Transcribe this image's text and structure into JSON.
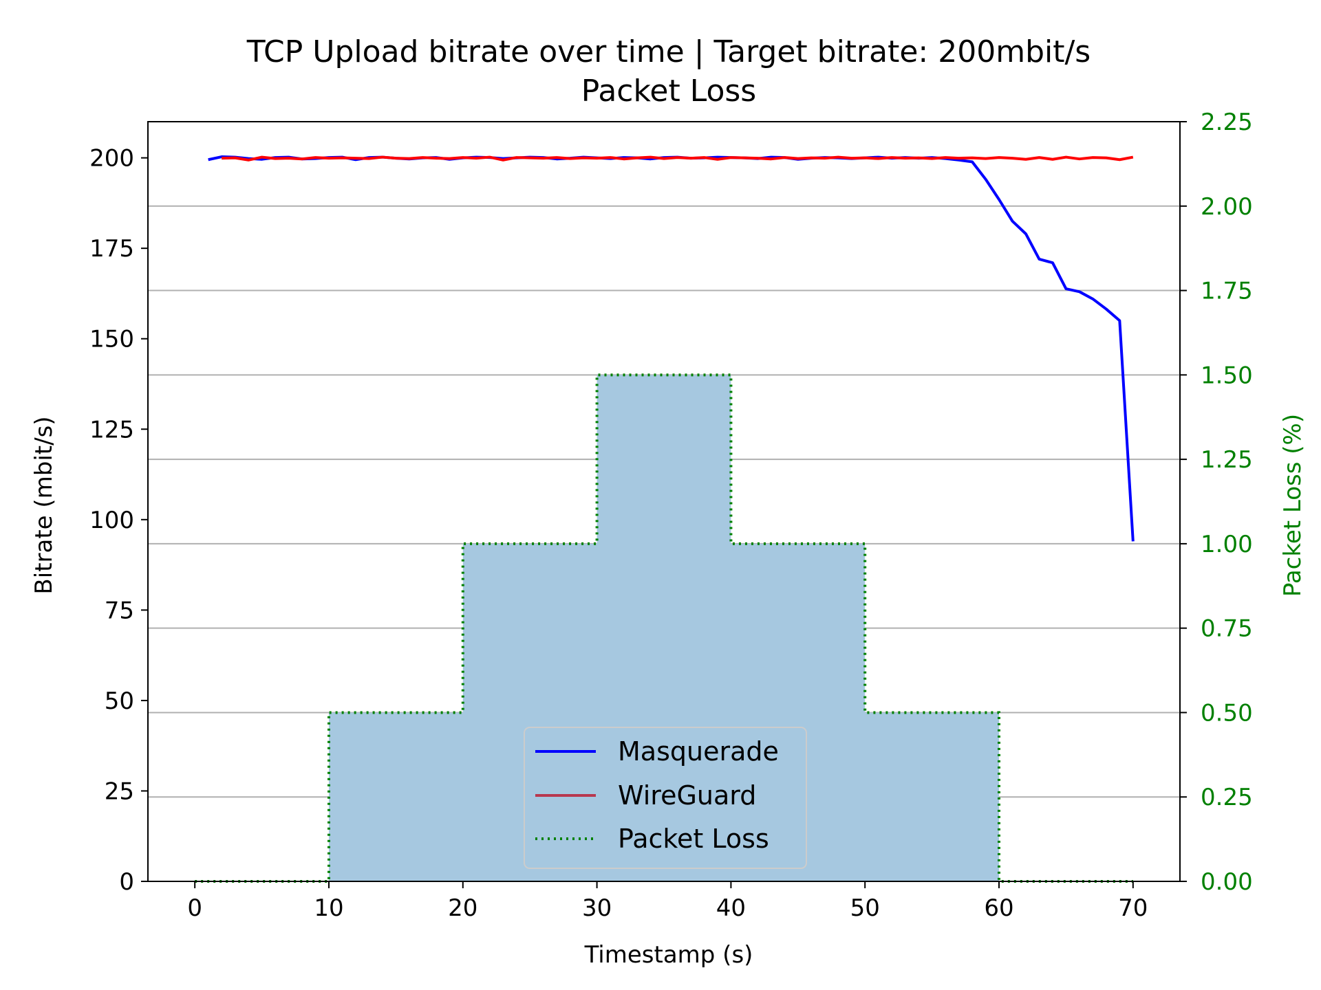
{
  "chart_data": {
    "type": "line",
    "title": "TCP Upload bitrate over time | Target bitrate: 200mbit/s",
    "subtitle": "Packet Loss",
    "xlabel": "Timestamp (s)",
    "ylabel": "Bitrate (mbit/s)",
    "y2label": "Packet Loss (%)",
    "xlim": [
      -3.5,
      73.5
    ],
    "ylim": [
      0,
      210
    ],
    "y2lim": [
      0,
      2.25
    ],
    "xticks": [
      0,
      10,
      20,
      30,
      40,
      50,
      60,
      70
    ],
    "yticks": [
      0,
      25,
      50,
      75,
      100,
      125,
      150,
      175,
      200
    ],
    "y2ticks": [
      "0.00",
      "0.25",
      "0.50",
      "0.75",
      "1.00",
      "1.25",
      "1.50",
      "1.75",
      "2.00",
      "2.25"
    ],
    "grid": "right-axis horizontal",
    "legend_position": "lower-center",
    "series": [
      {
        "name": "Masquerade",
        "color": "#0000ff",
        "x": [
          1,
          2,
          3,
          4,
          5,
          6,
          7,
          8,
          9,
          10,
          11,
          12,
          13,
          14,
          15,
          16,
          17,
          18,
          19,
          20,
          21,
          22,
          23,
          24,
          25,
          26,
          27,
          28,
          29,
          30,
          31,
          32,
          33,
          34,
          35,
          36,
          37,
          38,
          39,
          40,
          41,
          42,
          43,
          44,
          45,
          46,
          47,
          48,
          49,
          50,
          51,
          52,
          53,
          54,
          55,
          56,
          57,
          58,
          59,
          60,
          61,
          62,
          63,
          64,
          65,
          66,
          67,
          68,
          69,
          70
        ],
        "values": [
          199.5,
          200.3,
          200.2,
          199.8,
          199.6,
          200.1,
          200.2,
          199.7,
          199.8,
          200.1,
          200.2,
          199.5,
          200.1,
          200.2,
          199.9,
          199.7,
          200.0,
          200.1,
          199.6,
          200.0,
          200.2,
          200.1,
          199.8,
          200.0,
          200.2,
          200.1,
          199.7,
          199.9,
          200.2,
          200.0,
          199.8,
          200.1,
          200.0,
          199.7,
          200.1,
          200.2,
          199.9,
          200.0,
          200.2,
          200.1,
          200.0,
          199.8,
          200.2,
          200.1,
          199.6,
          199.9,
          200.1,
          200.0,
          199.8,
          200.0,
          200.2,
          199.9,
          200.1,
          199.9,
          200.1,
          199.8,
          199.4,
          198.9,
          194.1,
          188.5,
          182.5,
          179.0,
          172.0,
          171.0,
          163.8,
          163.0,
          161.0,
          158.2,
          155.0,
          94.0
        ]
      },
      {
        "name": "WireGuard",
        "color": "#ff0000",
        "x": [
          2,
          3,
          4,
          5,
          6,
          7,
          8,
          9,
          10,
          11,
          12,
          13,
          14,
          15,
          16,
          17,
          18,
          19,
          20,
          21,
          22,
          23,
          24,
          25,
          26,
          27,
          28,
          29,
          30,
          31,
          32,
          33,
          34,
          35,
          36,
          37,
          38,
          39,
          40,
          41,
          42,
          43,
          44,
          45,
          46,
          47,
          48,
          49,
          50,
          51,
          52,
          53,
          54,
          55,
          56,
          57,
          58,
          59,
          60,
          61,
          62,
          63,
          64,
          65,
          66,
          67,
          68,
          69,
          70
        ],
        "values": [
          199.9,
          200.0,
          199.4,
          200.2,
          199.8,
          199.9,
          199.7,
          200.1,
          199.9,
          200.0,
          199.9,
          199.8,
          200.2,
          199.9,
          199.8,
          200.1,
          199.9,
          199.8,
          200.1,
          199.9,
          200.2,
          199.4,
          200.1,
          200.0,
          199.9,
          200.1,
          199.8,
          200.0,
          199.9,
          200.1,
          199.7,
          200.0,
          200.2,
          199.8,
          200.1,
          199.9,
          200.1,
          199.6,
          200.1,
          200.0,
          199.9,
          199.7,
          200.1,
          199.8,
          200.0,
          199.9,
          200.2,
          199.9,
          200.0,
          199.8,
          200.1,
          199.9,
          200.0,
          199.8,
          200.1,
          199.9,
          200.0,
          199.8,
          200.1,
          199.9,
          199.6,
          200.1,
          199.6,
          200.2,
          199.7,
          200.1,
          200.0,
          199.5,
          200.2
        ]
      },
      {
        "name": "Packet Loss",
        "color": "#008000",
        "fill": "#a6c8e0",
        "axis": "right",
        "style": "dotted-step",
        "x": [
          0,
          10,
          10,
          20,
          20,
          30,
          30,
          40,
          40,
          50,
          50,
          60,
          60,
          70
        ],
        "values": [
          0,
          0,
          0.5,
          0.5,
          1.0,
          1.0,
          1.5,
          1.5,
          1.0,
          1.0,
          0.5,
          0.5,
          0,
          0
        ]
      }
    ]
  }
}
